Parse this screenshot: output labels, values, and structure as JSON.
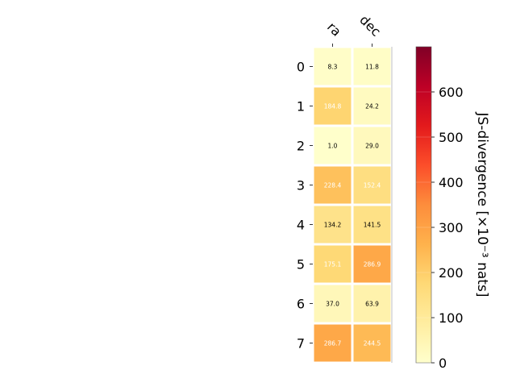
{
  "chart_data": {
    "type": "heatmap",
    "columns": [
      "ra",
      "dec"
    ],
    "rows": [
      "0",
      "1",
      "2",
      "3",
      "4",
      "5",
      "6",
      "7"
    ],
    "values": [
      [
        8.3,
        11.8
      ],
      [
        184.8,
        24.2
      ],
      [
        1.0,
        29.0
      ],
      [
        228.4,
        152.4
      ],
      [
        134.2,
        141.5
      ],
      [
        175.1,
        286.9
      ],
      [
        37.0,
        63.9
      ],
      [
        286.7,
        244.5
      ]
    ],
    "value_labels": [
      [
        "8.3",
        "11.8"
      ],
      [
        "184.8",
        "24.2"
      ],
      [
        "1.0",
        "29.0"
      ],
      [
        "228.4",
        "152.4"
      ],
      [
        "134.2",
        "141.5"
      ],
      [
        "175.1",
        "286.9"
      ],
      [
        "37.0",
        "63.9"
      ],
      [
        "286.7",
        "244.5"
      ]
    ],
    "colorbar": {
      "label": "JS-divergence [×10⁻³ nats]",
      "vmin": 0,
      "vmax": 700,
      "ticks": [
        0,
        100,
        200,
        300,
        400,
        500,
        600
      ],
      "colormap": "YlOrRd"
    },
    "grid": false
  }
}
